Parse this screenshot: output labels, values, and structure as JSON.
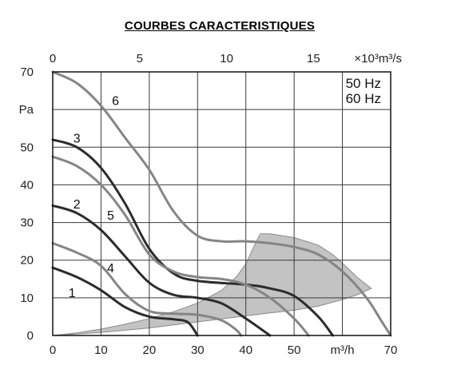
{
  "page_title": "COURBES CARACTERISTIQUES",
  "chart_data": {
    "type": "line",
    "title": "COURBES CARACTERISTIQUES",
    "xlabel": "m³/h",
    "ylabel": "Pa",
    "top_axis_label": "×10³m³/s",
    "xlim": [
      0,
      70
    ],
    "ylim": [
      0,
      70
    ],
    "top_xlim": [
      0,
      19.44
    ],
    "x_ticks": [
      0,
      10,
      20,
      30,
      40,
      50,
      70
    ],
    "x_tick_labels": [
      "0",
      "10",
      "20",
      "30",
      "40",
      "50",
      "70"
    ],
    "x_unit_at": 60,
    "y_ticks": [
      0,
      10,
      20,
      30,
      40,
      50,
      70
    ],
    "y_tick_labels": [
      "0",
      "10",
      "20",
      "30",
      "40",
      "50",
      "70"
    ],
    "y_unit_at": 60,
    "top_ticks": [
      0,
      5,
      10,
      15
    ],
    "top_tick_labels": [
      "0",
      "5",
      "10",
      "15"
    ],
    "grid": true,
    "legend": [
      "50 Hz",
      "60 Hz"
    ],
    "legend_position": "top-right",
    "colors": {
      "dark": "#2b2b2b",
      "light": "#858585",
      "area": "#c3c3c3",
      "grid": "#3a3a3a"
    },
    "shaded_region": {
      "upper": [
        [
          0,
          0
        ],
        [
          5,
          0.7
        ],
        [
          10,
          1.7
        ],
        [
          15,
          3.0
        ],
        [
          20,
          4.5
        ],
        [
          25,
          6.3
        ],
        [
          30,
          8.6
        ],
        [
          35,
          12.0
        ],
        [
          38,
          15.5
        ],
        [
          40,
          19.0
        ],
        [
          42,
          24.5
        ],
        [
          43,
          27.0
        ],
        [
          45,
          27.0
        ],
        [
          50,
          26.0
        ],
        [
          55,
          24.0
        ],
        [
          58,
          21.5
        ],
        [
          61,
          18.0
        ],
        [
          63,
          15.5
        ],
        [
          66,
          12.5
        ]
      ],
      "lower": [
        [
          66,
          12.5
        ],
        [
          63,
          10.8
        ],
        [
          60,
          9.5
        ],
        [
          55,
          7.8
        ],
        [
          50,
          6.7
        ],
        [
          45,
          6.0
        ],
        [
          40,
          5.2
        ],
        [
          30,
          3.6
        ],
        [
          20,
          2.0
        ],
        [
          10,
          0.8
        ],
        [
          0,
          0
        ]
      ]
    },
    "series": [
      {
        "name": "1",
        "shade": "dark",
        "points": [
          [
            0,
            18
          ],
          [
            5,
            15.5
          ],
          [
            10,
            12
          ],
          [
            15,
            7.5
          ],
          [
            20,
            5
          ],
          [
            25,
            4.3
          ],
          [
            28,
            3.5
          ],
          [
            30,
            0
          ]
        ],
        "label_at": [
          4,
          11.5
        ]
      },
      {
        "name": "2",
        "shade": "dark",
        "points": [
          [
            0,
            34.5
          ],
          [
            5,
            32.5
          ],
          [
            10,
            28
          ],
          [
            15,
            21
          ],
          [
            20,
            14
          ],
          [
            25,
            10.8
          ],
          [
            30,
            10
          ],
          [
            35,
            8.5
          ],
          [
            40,
            4.5
          ],
          [
            45,
            0
          ]
        ],
        "label_at": [
          5,
          35
        ]
      },
      {
        "name": "3",
        "shade": "dark",
        "points": [
          [
            0,
            52
          ],
          [
            5,
            50
          ],
          [
            10,
            44.5
          ],
          [
            15,
            35
          ],
          [
            20,
            23
          ],
          [
            25,
            16.5
          ],
          [
            30,
            14.5
          ],
          [
            40,
            13.5
          ],
          [
            45,
            12.5
          ],
          [
            50,
            10.5
          ],
          [
            55,
            5
          ],
          [
            58,
            0
          ]
        ],
        "label_at": [
          5,
          52.5
        ]
      },
      {
        "name": "4",
        "shade": "light",
        "points": [
          [
            0,
            24.5
          ],
          [
            5,
            22
          ],
          [
            10,
            18.5
          ],
          [
            15,
            11
          ],
          [
            20,
            6.5
          ],
          [
            25,
            5.8
          ],
          [
            30,
            5.5
          ],
          [
            35,
            4
          ],
          [
            38,
            1.5
          ],
          [
            39,
            0
          ]
        ],
        "label_at": [
          12,
          18
        ]
      },
      {
        "name": "5",
        "shade": "light",
        "points": [
          [
            0,
            47.5
          ],
          [
            5,
            45
          ],
          [
            10,
            40
          ],
          [
            15,
            32
          ],
          [
            20,
            21.5
          ],
          [
            25,
            17
          ],
          [
            30,
            15.5
          ],
          [
            35,
            15
          ],
          [
            40,
            13.5
          ],
          [
            45,
            10
          ],
          [
            50,
            4.5
          ],
          [
            53,
            0
          ]
        ],
        "label_at": [
          12,
          32
        ]
      },
      {
        "name": "6",
        "shade": "light",
        "points": [
          [
            0,
            70
          ],
          [
            5,
            67
          ],
          [
            10,
            61
          ],
          [
            15,
            52.5
          ],
          [
            20,
            44
          ],
          [
            25,
            33
          ],
          [
            30,
            26.5
          ],
          [
            35,
            25
          ],
          [
            40,
            25
          ],
          [
            45,
            24.5
          ],
          [
            50,
            23.5
          ],
          [
            55,
            21.5
          ],
          [
            60,
            17
          ],
          [
            65,
            10
          ],
          [
            68,
            4
          ],
          [
            70,
            0
          ]
        ],
        "label_at": [
          13,
          62.5
        ]
      }
    ]
  }
}
